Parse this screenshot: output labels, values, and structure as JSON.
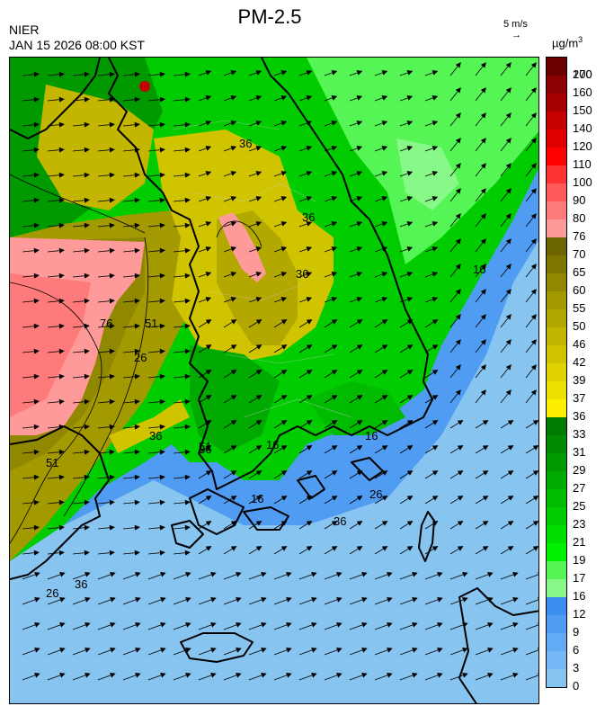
{
  "header": {
    "title": "PM-2.5",
    "agency": "NIER",
    "timestamp": "JAN 15 2026 08:00 KST",
    "wind_reference": "5 m/s",
    "wind_reference_arrow": "→",
    "unit_base": "µg/m",
    "unit_exponent": "3"
  },
  "colorbar": {
    "levels": [
      "200",
      "170",
      "160",
      "150",
      "140",
      "120",
      "110",
      "100",
      "90",
      "80",
      "76",
      "70",
      "65",
      "60",
      "55",
      "50",
      "46",
      "42",
      "39",
      "37",
      "36",
      "33",
      "31",
      "29",
      "27",
      "25",
      "23",
      "21",
      "19",
      "17",
      "16",
      "12",
      "9",
      "6",
      "3",
      "0"
    ],
    "colors": [
      "#6b0000",
      "#8b0000",
      "#a80000",
      "#c40000",
      "#e00000",
      "#ff0000",
      "#ff3333",
      "#ff5a5a",
      "#ff7a7a",
      "#ff9a9a",
      "#6b6400",
      "#7d7500",
      "#908800",
      "#a39900",
      "#b3a800",
      "#c2b600",
      "#d0c400",
      "#dfd200",
      "#eee000",
      "#fcef00",
      "#007a00",
      "#008a00",
      "#009a00",
      "#00aa00",
      "#00bb00",
      "#00cc00",
      "#00de00",
      "#00f000",
      "#55f555",
      "#88f888",
      "#3c8ef0",
      "#4f9cf2",
      "#62aaf4",
      "#75b8f5",
      "#88c4f0"
    ]
  },
  "map": {
    "contour_labels": [
      "36",
      "36",
      "36",
      "26",
      "51",
      "76",
      "36",
      "51",
      "51",
      "36",
      "16",
      "16",
      "16",
      "36",
      "16",
      "36",
      "26",
      "26"
    ],
    "icons": {
      "wind_vectors": "arrow-icon",
      "coastline": "coastline"
    }
  }
}
